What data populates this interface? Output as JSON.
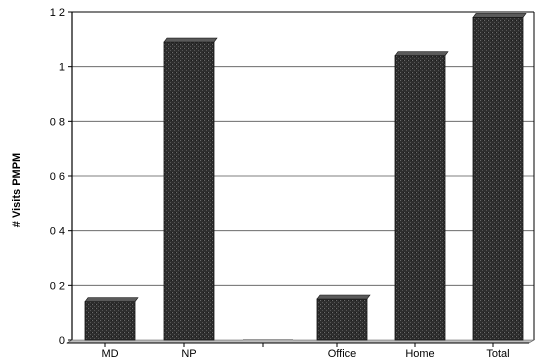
{
  "chart_data": {
    "type": "bar",
    "categories": [
      "MD",
      "NP",
      "",
      "Office",
      "Home",
      "Total"
    ],
    "values": [
      0.14,
      1.09,
      0.0,
      0.15,
      1.04,
      1.18
    ],
    "ylabel": "# Visits PMPM",
    "ylim": [
      0,
      1.2
    ],
    "yticks": [
      0,
      0.2,
      0.4,
      0.6,
      0.8,
      1,
      1.2
    ],
    "ytick_labels": [
      "0",
      "0 2",
      "0 4",
      "0 6",
      "0 8",
      "1",
      "1 2"
    ],
    "grid": true,
    "bar_color": "#2e2e2e"
  }
}
